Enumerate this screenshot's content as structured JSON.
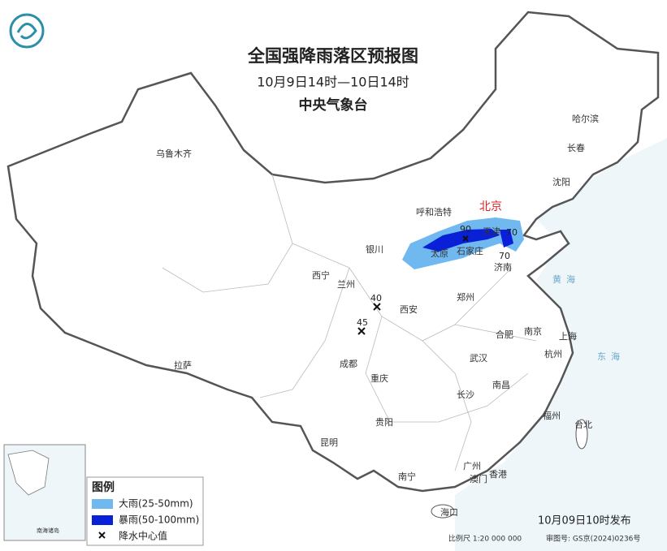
{
  "header": {
    "title": "全国强降雨落区预报图",
    "subtitle": "10月9日14时—10日14时",
    "issuer": "中央气象台"
  },
  "cities": [
    "乌鲁木齐",
    "哈尔滨",
    "长春",
    "沈阳",
    "呼和浩特",
    "北京",
    "天津",
    "石家庄",
    "太原",
    "济南",
    "银川",
    "西宁",
    "兰州",
    "郑州",
    "西安",
    "合肥",
    "南京",
    "上海",
    "杭州",
    "武汉",
    "成都",
    "重庆",
    "拉萨",
    "长沙",
    "南昌",
    "福州",
    "台北",
    "贵阳",
    "昆明",
    "南宁",
    "广州",
    "澳门",
    "香港",
    "海口"
  ],
  "seas": [
    "黄海",
    "东海"
  ],
  "rain_centers": [
    90,
    70,
    70,
    40,
    45
  ],
  "inset": {
    "label": "南海诸岛"
  },
  "legend": {
    "title": "图例",
    "items": [
      "大雨(25-50mm)",
      "暴雨(50-100mm)",
      "降水中心值"
    ]
  },
  "footer": {
    "issued": "10月09日10时发布",
    "scale": "比例尺 1:20 000 000",
    "approval": "审图号: GS京(2024)0236号"
  }
}
